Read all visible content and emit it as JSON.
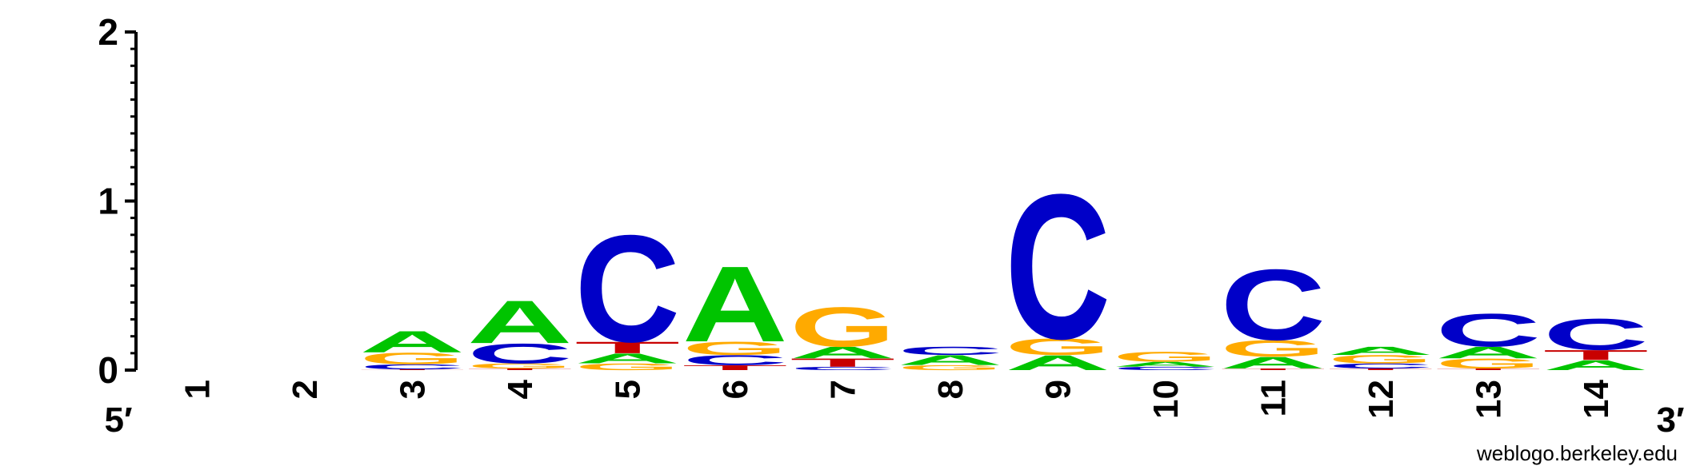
{
  "chart_data": {
    "type": "sequence-logo",
    "title": "",
    "xlabel": "",
    "ylabel": "",
    "ylim": [
      0,
      2
    ],
    "yticks": [
      "0",
      "1",
      "2"
    ],
    "end_labels": {
      "left": "5′",
      "right": "3′"
    },
    "colors": {
      "A": "#00c400",
      "C": "#0000c8",
      "G": "#ffaa00",
      "T": "#c80000"
    },
    "positions": [
      {
        "label": "1",
        "stack": []
      },
      {
        "label": "2",
        "stack": []
      },
      {
        "label": "3",
        "stack": [
          {
            "base": "T",
            "height": 0.005
          },
          {
            "base": "C",
            "height": 0.03
          },
          {
            "base": "G",
            "height": 0.07
          },
          {
            "base": "A",
            "height": 0.13
          }
        ]
      },
      {
        "label": "4",
        "stack": [
          {
            "base": "T",
            "height": 0.01
          },
          {
            "base": "G",
            "height": 0.03
          },
          {
            "base": "C",
            "height": 0.12
          },
          {
            "base": "A",
            "height": 0.26
          }
        ]
      },
      {
        "label": "5",
        "stack": [
          {
            "base": "G",
            "height": 0.04
          },
          {
            "base": "A",
            "height": 0.06
          },
          {
            "base": "T",
            "height": 0.07
          },
          {
            "base": "C",
            "height": 0.65
          }
        ]
      },
      {
        "label": "6",
        "stack": [
          {
            "base": "T",
            "height": 0.03
          },
          {
            "base": "C",
            "height": 0.06
          },
          {
            "base": "G",
            "height": 0.08
          },
          {
            "base": "A",
            "height": 0.46
          }
        ]
      },
      {
        "label": "7",
        "stack": [
          {
            "base": "C",
            "height": 0.02
          },
          {
            "base": "T",
            "height": 0.05
          },
          {
            "base": "A",
            "height": 0.07
          },
          {
            "base": "G",
            "height": 0.24
          }
        ]
      },
      {
        "label": "8",
        "stack": [
          {
            "base": "G",
            "height": 0.03
          },
          {
            "base": "A",
            "height": 0.06
          },
          {
            "base": "C",
            "height": 0.05
          }
        ]
      },
      {
        "label": "9",
        "stack": [
          {
            "base": "A",
            "height": 0.09
          },
          {
            "base": "G",
            "height": 0.1
          },
          {
            "base": "C",
            "height": 0.88
          }
        ]
      },
      {
        "label": "10",
        "stack": [
          {
            "base": "C",
            "height": 0.02
          },
          {
            "base": "A",
            "height": 0.03
          },
          {
            "base": "G",
            "height": 0.06
          }
        ]
      },
      {
        "label": "11",
        "stack": [
          {
            "base": "T",
            "height": 0.01
          },
          {
            "base": "A",
            "height": 0.07
          },
          {
            "base": "G",
            "height": 0.1
          },
          {
            "base": "C",
            "height": 0.43
          }
        ]
      },
      {
        "label": "12",
        "stack": [
          {
            "base": "T",
            "height": 0.01
          },
          {
            "base": "C",
            "height": 0.03
          },
          {
            "base": "G",
            "height": 0.05
          },
          {
            "base": "A",
            "height": 0.05
          }
        ]
      },
      {
        "label": "13",
        "stack": [
          {
            "base": "T",
            "height": 0.01
          },
          {
            "base": "G",
            "height": 0.06
          },
          {
            "base": "A",
            "height": 0.07
          },
          {
            "base": "C",
            "height": 0.2
          }
        ]
      },
      {
        "label": "14",
        "stack": [
          {
            "base": "A",
            "height": 0.06
          },
          {
            "base": "T",
            "height": 0.06
          },
          {
            "base": "C",
            "height": 0.19
          }
        ]
      }
    ],
    "footer_text": "weblogo.berkeley.edu"
  }
}
